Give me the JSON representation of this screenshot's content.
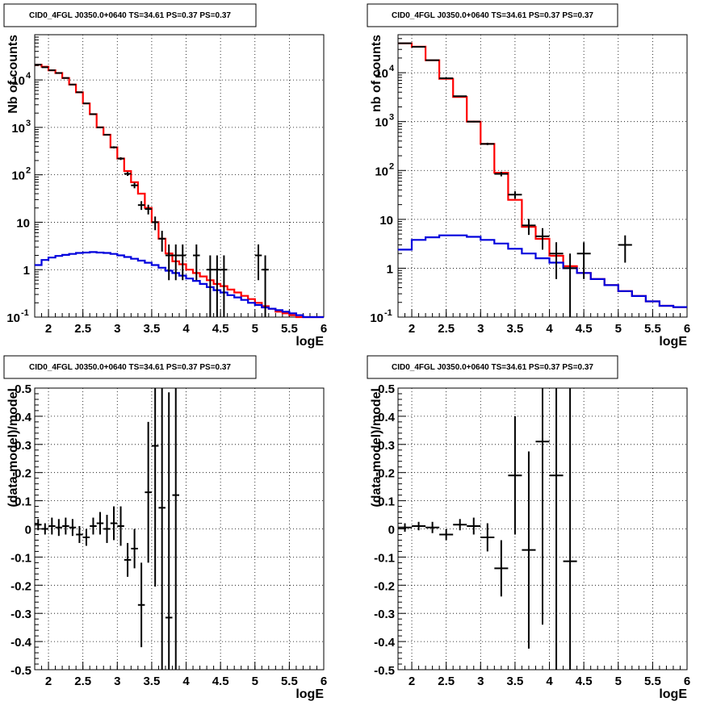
{
  "chart_data": [
    {
      "type": "line",
      "title": "CID0_4FGL J0350.0+0640 TS=34.61 PS=0.37 PS=0.37",
      "xlabel": "logE",
      "ylabel": "Nb of counts",
      "xlim": [
        1.8,
        6
      ],
      "ylim": [
        0.1,
        90000
      ],
      "yscale": "log",
      "grid": true,
      "x_ticks": [
        "2",
        "2.5",
        "3",
        "3.5",
        "4",
        "4.5",
        "5",
        "5.5",
        "6"
      ],
      "y_ticks": [
        {
          "base": "10",
          "exp": "-1"
        },
        {
          "base": "1",
          "exp": ""
        },
        {
          "base": "10",
          "exp": ""
        },
        {
          "base": "10",
          "exp": "2"
        },
        {
          "base": "10",
          "exp": "3"
        },
        {
          "base": "10",
          "exp": "4"
        }
      ],
      "bin_width": 0.1,
      "series": [
        {
          "color": "#ff0000",
          "kind": "step",
          "x": [
            1.8,
            1.9,
            2.0,
            2.1,
            2.2,
            2.3,
            2.4,
            2.5,
            2.6,
            2.7,
            2.8,
            2.9,
            3.0,
            3.1,
            3.2,
            3.3,
            3.4,
            3.5,
            3.6,
            3.7,
            3.8,
            3.9,
            4.0,
            4.1,
            4.2,
            4.3,
            4.4,
            4.5,
            4.6,
            4.7,
            4.8,
            4.9,
            5.0,
            5.1,
            5.2,
            5.3,
            5.4,
            5.5,
            5.6,
            5.7,
            5.8,
            5.9
          ],
          "values": [
            21000,
            19000,
            16000,
            14000,
            11000,
            8000,
            5500,
            3200,
            1900,
            1000,
            700,
            380,
            220,
            120,
            70,
            40,
            20,
            10,
            4.5,
            2.2,
            1.5,
            1.3,
            1.0,
            0.85,
            0.72,
            0.6,
            0.5,
            0.45,
            0.38,
            0.33,
            0.28,
            0.24,
            0.2,
            0.17,
            0.15,
            0.13,
            0.12,
            0.11,
            0.1,
            0.1,
            0.1,
            0.1
          ]
        },
        {
          "color": "#0000dd",
          "kind": "step",
          "x": [
            1.8,
            1.9,
            2.0,
            2.1,
            2.2,
            2.3,
            2.4,
            2.5,
            2.6,
            2.7,
            2.8,
            2.9,
            3.0,
            3.1,
            3.2,
            3.3,
            3.4,
            3.5,
            3.6,
            3.7,
            3.8,
            3.9,
            4.0,
            4.1,
            4.2,
            4.3,
            4.4,
            4.5,
            4.6,
            4.7,
            4.8,
            4.9,
            5.0,
            5.1,
            5.2,
            5.3,
            5.4,
            5.5,
            5.6,
            5.7,
            5.8,
            5.9
          ],
          "values": [
            1.25,
            1.6,
            1.8,
            1.95,
            2.05,
            2.15,
            2.25,
            2.3,
            2.35,
            2.3,
            2.25,
            2.15,
            2.0,
            1.85,
            1.7,
            1.55,
            1.4,
            1.25,
            1.1,
            0.95,
            0.85,
            0.75,
            0.65,
            0.58,
            0.5,
            0.43,
            0.37,
            0.33,
            0.29,
            0.26,
            0.23,
            0.2,
            0.18,
            0.16,
            0.15,
            0.14,
            0.13,
            0.12,
            0.11,
            0.1,
            0.1,
            0.1
          ]
        },
        {
          "color": "#000000",
          "kind": "errorbar",
          "x": [
            1.85,
            1.95,
            2.05,
            2.15,
            2.25,
            2.35,
            2.45,
            2.55,
            2.65,
            2.75,
            2.85,
            2.95,
            3.05,
            3.15,
            3.25,
            3.35,
            3.45,
            3.55,
            3.65,
            3.75,
            3.85,
            3.95,
            4.15,
            4.35,
            4.45,
            4.55,
            5.05,
            5.15
          ],
          "values": [
            21000,
            18500,
            16000,
            14000,
            11000,
            8000,
            5500,
            3200,
            1900,
            1000,
            700,
            380,
            220,
            105,
            60,
            23,
            19,
            10,
            4.5,
            2,
            2,
            2,
            2,
            1,
            1,
            1,
            2,
            1
          ],
          "err": [
            150,
            140,
            130,
            120,
            110,
            90,
            75,
            57,
            44,
            32,
            26,
            19,
            15,
            10,
            8,
            4.8,
            4.4,
            3.2,
            2.1,
            1.4,
            1.4,
            1.4,
            1.4,
            1,
            1,
            1,
            1.4,
            1
          ]
        }
      ]
    },
    {
      "type": "line",
      "title": "CID0_4FGL J0350.0+0640 TS=34.61 PS=0.37 PS=0.37",
      "xlabel": "logE",
      "ylabel": "nb of counts",
      "xlim": [
        1.8,
        6
      ],
      "ylim": [
        0.1,
        60000
      ],
      "yscale": "log",
      "grid": true,
      "x_ticks": [
        "2",
        "2.5",
        "3",
        "3.5",
        "4",
        "4.5",
        "5",
        "5.5",
        "6"
      ],
      "y_ticks": [
        {
          "base": "10",
          "exp": "-1"
        },
        {
          "base": "1",
          "exp": ""
        },
        {
          "base": "10",
          "exp": ""
        },
        {
          "base": "10",
          "exp": "2"
        },
        {
          "base": "10",
          "exp": "3"
        },
        {
          "base": "10",
          "exp": "4"
        }
      ],
      "bin_width": 0.2,
      "series": [
        {
          "color": "#ff0000",
          "kind": "step",
          "x": [
            1.8,
            2.0,
            2.2,
            2.4,
            2.6,
            2.8,
            3.0,
            3.2,
            3.4,
            3.6,
            3.8,
            4.0,
            4.2,
            4.4,
            4.6,
            4.8,
            5.0,
            5.2,
            5.4,
            5.6,
            5.8
          ],
          "values": [
            40000,
            34000,
            18000,
            7500,
            3200,
            1000,
            350,
            90,
            25,
            7,
            4,
            1.8,
            1.1,
            0.8,
            0.6,
            0.45,
            0.34,
            0.27,
            0.21,
            0.17,
            0.16
          ]
        },
        {
          "color": "#0000dd",
          "kind": "step",
          "x": [
            1.8,
            2.0,
            2.2,
            2.4,
            2.6,
            2.8,
            3.0,
            3.2,
            3.4,
            3.6,
            3.8,
            4.0,
            4.2,
            4.4,
            4.6,
            4.8,
            5.0,
            5.2,
            5.4,
            5.6,
            5.8
          ],
          "values": [
            2.4,
            3.8,
            4.3,
            4.7,
            4.7,
            4.4,
            3.8,
            3.2,
            2.5,
            2.0,
            1.6,
            1.3,
            1.0,
            0.8,
            0.6,
            0.45,
            0.34,
            0.27,
            0.21,
            0.17,
            0.16
          ]
        },
        {
          "color": "#000000",
          "kind": "errorbar",
          "x": [
            1.9,
            2.1,
            2.3,
            2.5,
            2.7,
            2.9,
            3.1,
            3.3,
            3.5,
            3.7,
            3.9,
            4.1,
            4.3,
            4.5,
            5.1
          ],
          "values": [
            40000,
            34000,
            18000,
            7700,
            3300,
            1000,
            350,
            85,
            32,
            7.5,
            4.5,
            2,
            1,
            2,
            3
          ],
          "err": [
            200,
            185,
            135,
            88,
            57,
            32,
            19,
            9.2,
            5.7,
            2.7,
            2.1,
            1.4,
            1,
            1.4,
            1.7
          ]
        }
      ]
    },
    {
      "type": "scatter",
      "title": "CID0_4FGL J0350.0+0640 TS=34.61 PS=0.37 PS=0.37",
      "xlabel": "logE",
      "ylabel": "(data-model)/model",
      "xlim": [
        1.8,
        6
      ],
      "ylim": [
        -0.5,
        0.5
      ],
      "grid": true,
      "x_ticks": [
        "2",
        "2.5",
        "3",
        "3.5",
        "4",
        "4.5",
        "5",
        "5.5",
        "6"
      ],
      "y_ticks": [
        "-0.5",
        "-0.4",
        "-0.3",
        "-0.2",
        "-0.1",
        "0",
        "0.1",
        "0.2",
        "0.3",
        "0.4",
        "0.5"
      ],
      "bin_width": 0.1,
      "series": [
        {
          "color": "#000000",
          "kind": "errorbar",
          "x": [
            1.85,
            1.95,
            2.05,
            2.15,
            2.25,
            2.35,
            2.45,
            2.55,
            2.65,
            2.75,
            2.85,
            2.95,
            3.05,
            3.15,
            3.25,
            3.35,
            3.45,
            3.55,
            3.65,
            3.75,
            3.85
          ],
          "values": [
            0.015,
            0.0,
            0.01,
            0.005,
            0.01,
            0.005,
            -0.02,
            -0.03,
            0.01,
            0.02,
            0.0,
            0.02,
            0.01,
            -0.11,
            -0.07,
            -0.27,
            0.13,
            0.295,
            0.075,
            -0.315,
            0.12
          ],
          "err": [
            0.02,
            0.02,
            0.03,
            0.03,
            0.03,
            0.03,
            0.03,
            0.03,
            0.03,
            0.04,
            0.05,
            0.06,
            0.07,
            0.06,
            0.07,
            0.15,
            0.25,
            0.5,
            0.6,
            0.8,
            0.8
          ]
        }
      ]
    },
    {
      "type": "scatter",
      "title": "CID0_4FGL J0350.0+0640 TS=34.61 PS=0.37 PS=0.37",
      "xlabel": "logE",
      "ylabel": "(data-model)/model",
      "xlim": [
        1.8,
        6
      ],
      "ylim": [
        -0.5,
        0.5
      ],
      "grid": true,
      "x_ticks": [
        "2",
        "2.5",
        "3",
        "3.5",
        "4",
        "4.5",
        "5",
        "5.5",
        "6"
      ],
      "y_ticks": [
        "-0.5",
        "-0.4",
        "-0.3",
        "-0.2",
        "-0.1",
        "0",
        "0.1",
        "0.2",
        "0.3",
        "0.4",
        "0.5"
      ],
      "bin_width": 0.2,
      "series": [
        {
          "color": "#000000",
          "kind": "errorbar",
          "x": [
            1.9,
            2.1,
            2.3,
            2.5,
            2.7,
            2.9,
            3.1,
            3.3,
            3.5,
            3.7,
            3.9,
            4.1,
            4.3
          ],
          "values": [
            0.005,
            0.01,
            0.005,
            -0.02,
            0.015,
            0.01,
            -0.03,
            -0.14,
            0.19,
            -0.075,
            0.31,
            0.19,
            -0.115
          ],
          "err": [
            0.015,
            0.015,
            0.02,
            0.02,
            0.02,
            0.03,
            0.05,
            0.1,
            0.21,
            0.35,
            0.65,
            0.8,
            0.9
          ]
        }
      ]
    }
  ]
}
